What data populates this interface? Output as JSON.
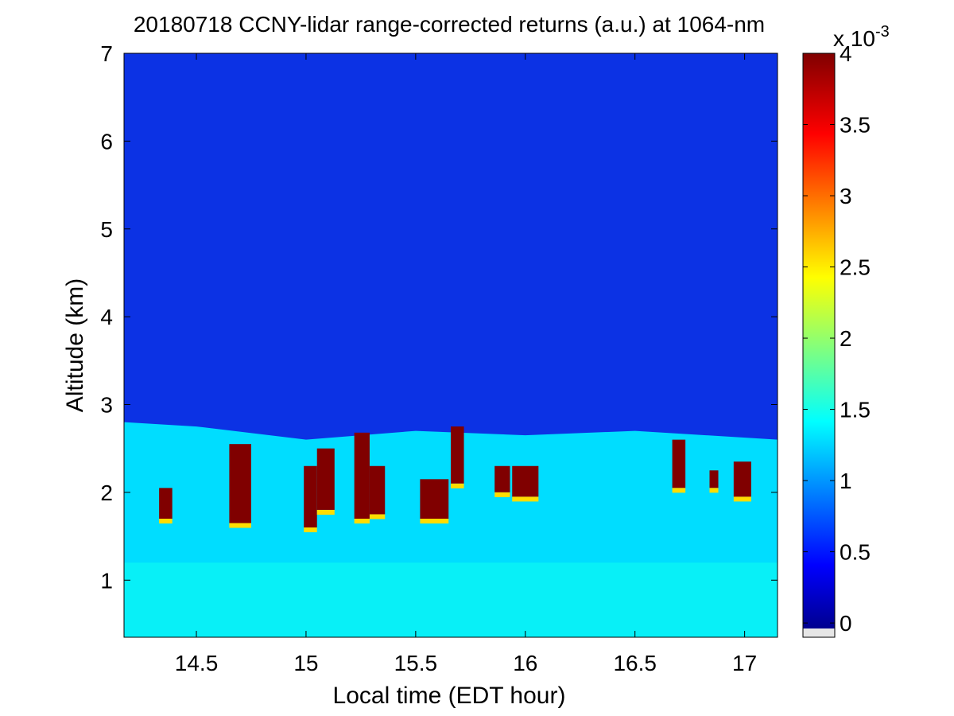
{
  "chart_data": {
    "type": "heatmap",
    "title": "20180718 CCNY-lidar range-corrected returns (a.u.) at 1064-nm",
    "xlabel": "Local time (EDT hour)",
    "ylabel": "Altitude (km)",
    "xlim": [
      14.17,
      17.15
    ],
    "ylim": [
      0.35,
      7
    ],
    "xticks": [
      14.5,
      15,
      15.5,
      16,
      16.5,
      17
    ],
    "xtick_labels": [
      "14.5",
      "15",
      "15.5",
      "16",
      "16.5",
      "17"
    ],
    "yticks": [
      1,
      2,
      3,
      4,
      5,
      6,
      7
    ],
    "ytick_labels": [
      "1",
      "2",
      "3",
      "4",
      "5",
      "6",
      "7"
    ],
    "colormap": "jet",
    "colorbar": {
      "range": [
        -0.0001,
        0.004
      ],
      "ticks": [
        0,
        0.0005,
        0.001,
        0.0015,
        0.002,
        0.0025,
        0.003,
        0.0035,
        0.004
      ],
      "tick_labels": [
        "0",
        "0.5",
        "1",
        "1.5",
        "2",
        "2.5",
        "3",
        "3.5",
        "4"
      ],
      "exponent_label": "x 10-3",
      "exponent_base": "x 10",
      "exponent_power": "-3"
    },
    "features": {
      "free_troposphere_value": 0.0004,
      "boundary_layer_top_km": [
        {
          "t": 14.17,
          "z": 2.8
        },
        {
          "t": 14.5,
          "z": 2.75
        },
        {
          "t": 15.0,
          "z": 2.6
        },
        {
          "t": 15.5,
          "z": 2.7
        },
        {
          "t": 16.0,
          "z": 2.65
        },
        {
          "t": 16.5,
          "z": 2.7
        },
        {
          "t": 17.15,
          "z": 2.6
        }
      ],
      "mixed_layer_value": 0.0013,
      "clouds": [
        {
          "t0": 14.33,
          "t1": 14.39,
          "z0": 1.7,
          "z1": 2.05
        },
        {
          "t0": 14.65,
          "t1": 14.75,
          "z0": 1.65,
          "z1": 2.55
        },
        {
          "t0": 14.99,
          "t1": 15.05,
          "z0": 1.6,
          "z1": 2.3
        },
        {
          "t0": 15.05,
          "t1": 15.13,
          "z0": 1.8,
          "z1": 2.5
        },
        {
          "t0": 15.22,
          "t1": 15.29,
          "z0": 1.7,
          "z1": 2.68
        },
        {
          "t0": 15.29,
          "t1": 15.36,
          "z0": 1.75,
          "z1": 2.3
        },
        {
          "t0": 15.52,
          "t1": 15.65,
          "z0": 1.7,
          "z1": 2.15
        },
        {
          "t0": 15.66,
          "t1": 15.72,
          "z0": 2.1,
          "z1": 2.75
        },
        {
          "t0": 15.86,
          "t1": 15.93,
          "z0": 2.0,
          "z1": 2.3
        },
        {
          "t0": 15.94,
          "t1": 16.06,
          "z0": 1.95,
          "z1": 2.3
        },
        {
          "t0": 16.67,
          "t1": 16.73,
          "z0": 2.05,
          "z1": 2.6
        },
        {
          "t0": 16.84,
          "t1": 16.88,
          "z0": 2.05,
          "z1": 2.25
        },
        {
          "t0": 16.95,
          "t1": 17.03,
          "z0": 1.95,
          "z1": 2.35
        }
      ]
    }
  }
}
